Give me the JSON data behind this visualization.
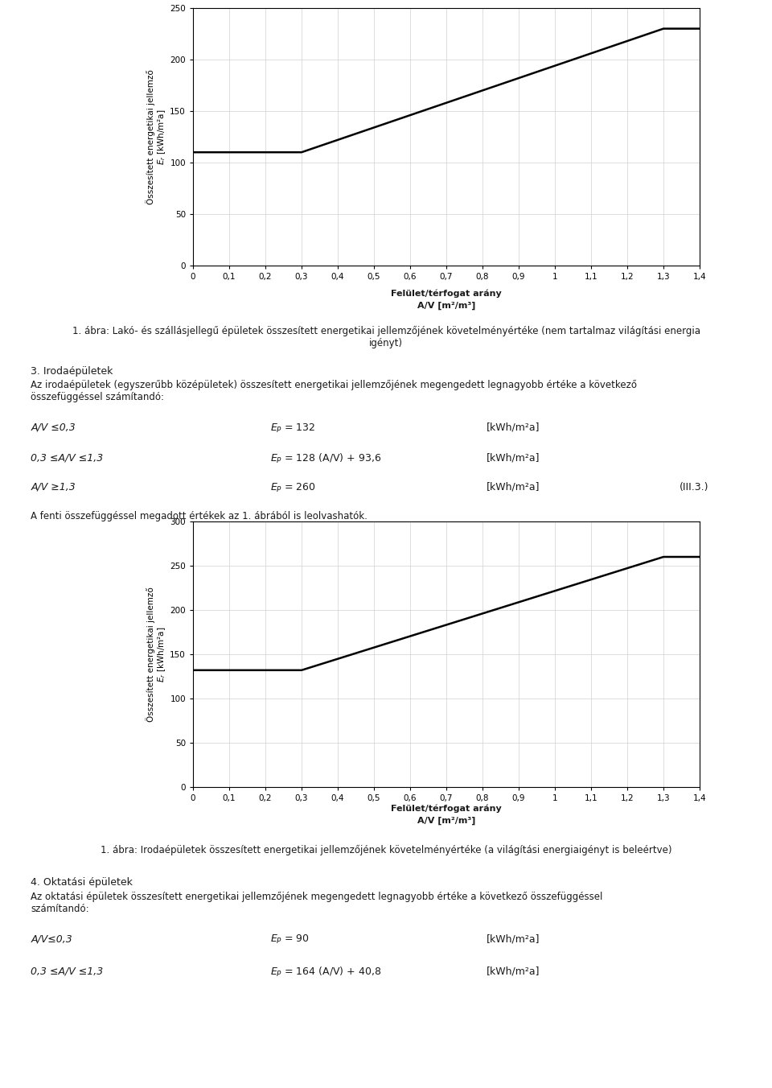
{
  "chart1": {
    "x_data": [
      0,
      0.2,
      0.3,
      1.3,
      1.4
    ],
    "y_data": [
      110,
      110,
      110,
      230,
      230
    ],
    "xlim": [
      0,
      1.4
    ],
    "ylim": [
      0,
      250
    ],
    "xticks": [
      0,
      0.1,
      0.2,
      0.3,
      0.4,
      0.5,
      0.6,
      0.7,
      0.8,
      0.9,
      1.0,
      1.1,
      1.2,
      1.3,
      1.4
    ],
    "yticks": [
      0,
      50,
      100,
      150,
      200,
      250
    ],
    "xtick_labels": [
      "0",
      "0,1",
      "0,2",
      "0,3",
      "0,4",
      "0,5",
      "0,6",
      "0,7",
      "0,8",
      "0,9",
      "1",
      "1,1",
      "1,2",
      "1,3",
      "1,4"
    ],
    "ytick_labels": [
      "0",
      "50",
      "100",
      "150",
      "200",
      "250"
    ],
    "ylabel": "Összesített energetikai jellemző\n$E_r$ [kWh/m²a]",
    "xlabel_l1": "Felület/térfogat arány",
    "xlabel_l2": "A/V [m²/m³]"
  },
  "chart2": {
    "x_data": [
      0,
      0.2,
      0.3,
      1.3,
      1.4
    ],
    "y_data": [
      132,
      132,
      132,
      260,
      260
    ],
    "xlim": [
      0,
      1.4
    ],
    "ylim": [
      0,
      300
    ],
    "xticks": [
      0,
      0.1,
      0.2,
      0.3,
      0.4,
      0.5,
      0.6,
      0.7,
      0.8,
      0.9,
      1.0,
      1.1,
      1.2,
      1.3,
      1.4
    ],
    "yticks": [
      0,
      50,
      100,
      150,
      200,
      250,
      300
    ],
    "xtick_labels": [
      "0",
      "0,1",
      "0,2",
      "0,3",
      "0,4",
      "0,5",
      "0,6",
      "0,7",
      "0,8",
      "0,9",
      "1",
      "1,1",
      "1,2",
      "1,3",
      "1,4"
    ],
    "ytick_labels": [
      "0",
      "50",
      "100",
      "150",
      "200",
      "250",
      "300"
    ],
    "ylabel": "Összesített energetikai jellemző\n$E_r$ [kWh/m²a]",
    "xlabel_l1": "Felület/térfogat arány",
    "xlabel_l2": "A/V [m²/m³]"
  },
  "caption1": "1. ábra: Lakó- és szállásjellegű épületek összesített energetikai jellemzőjének követelményértéke (nem tartalmaz világítási energia\nigényt)",
  "section3_title": "3. Irodaépületek",
  "section3_text": "Az irodaépületek (egyszerűbb középületek) összesített energetikai jellemzőjének megengedett legnagyobb értéke a következő\nösszefüggéssel számítandó:",
  "formula3_cond1": "A/V ≤0,3",
  "formula3_val1": "$E_P$ = 132",
  "formula3_unit1": "[kWh/m²a]",
  "formula3_cond2": "0,3 ≤A/V ≤1,3",
  "formula3_val2": "$E_P$ = 128 (A/V) + 93,6",
  "formula3_unit2": "[kWh/m²a]",
  "formula3_cond3": "A/V ≥1,3",
  "formula3_val3": "$E_P$ = 260",
  "formula3_unit3": "[kWh/m²a]",
  "formula3_ref": "(III.3.)",
  "chart2_pretext": "A fenti összefüggéssel megadott értékek az 1. ábrából is leolvashatók.",
  "caption2": "1. ábra: Irodaépületek összesített energetikai jellemzőjének követelményértéke (a világítási energiaigényt is beleértve)",
  "section4_title": "4. Oktatási épületek",
  "section4_text": "Az oktatási épületek összesített energetikai jellemzőjének megengedett legnagyobb értéke a következő összefüggéssel\nszámítandó:",
  "formula4_cond1": "A/V≤0,3",
  "formula4_val1": "$E_P$ = 90",
  "formula4_unit1": "[kWh/m²a]",
  "formula4_cond2": "0,3 ≤A/V ≤1,3",
  "formula4_val2": "$E_P$ = 164 (A/V) + 40,8",
  "formula4_unit2": "[kWh/m²a]",
  "line_color": "#000000",
  "line_width": 1.8,
  "grid_color": "#d0d0d0",
  "bg_color": "#ffffff",
  "text_color": "#1a1a1a"
}
